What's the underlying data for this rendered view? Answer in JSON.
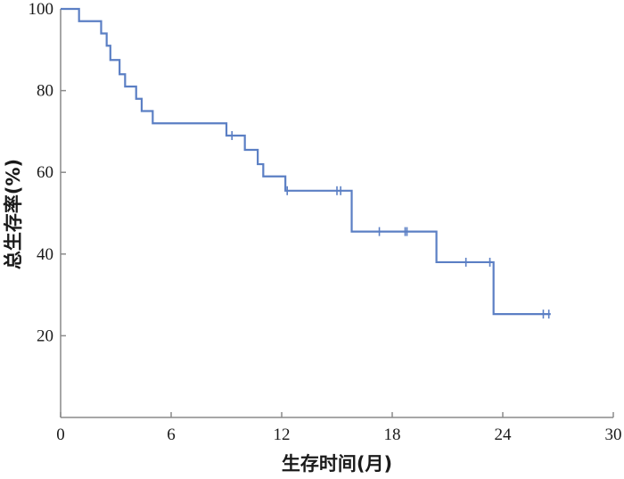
{
  "chart_data": {
    "type": "line",
    "subtype": "kaplan-meier-step",
    "title": "",
    "xlabel": "生存时间(月)",
    "ylabel": "总生存率(%)",
    "xlim": [
      0,
      30
    ],
    "ylim": [
      0,
      100
    ],
    "xticks": [
      "0",
      "6",
      "12",
      "18",
      "24",
      "30"
    ],
    "yticks": [
      "20",
      "40",
      "60",
      "80",
      "100"
    ],
    "grid": false,
    "legend": "none",
    "line_color": "#5b7fc4",
    "series": [
      {
        "x": [
          0,
          1,
          2.2,
          2.5,
          2.7,
          3.2,
          3.5,
          4.1,
          4.4,
          5.0,
          9.0,
          10.0,
          10.7,
          11.0,
          12.2,
          15.8,
          20.4,
          23.5,
          26.6
        ],
        "y": [
          100,
          97,
          94,
          91,
          87.5,
          84,
          81,
          78,
          75,
          72,
          69,
          65.5,
          62,
          59,
          55.5,
          45.5,
          38,
          25.3,
          25.3
        ]
      }
    ],
    "censored": {
      "x": [
        9.3,
        12.3,
        15.0,
        15.2,
        17.3,
        18.7,
        18.8,
        22.0,
        23.3,
        26.2,
        26.5
      ],
      "y": [
        69,
        55.5,
        55.5,
        55.5,
        45.5,
        45.5,
        45.5,
        38,
        38,
        25.3,
        25.3
      ]
    }
  }
}
